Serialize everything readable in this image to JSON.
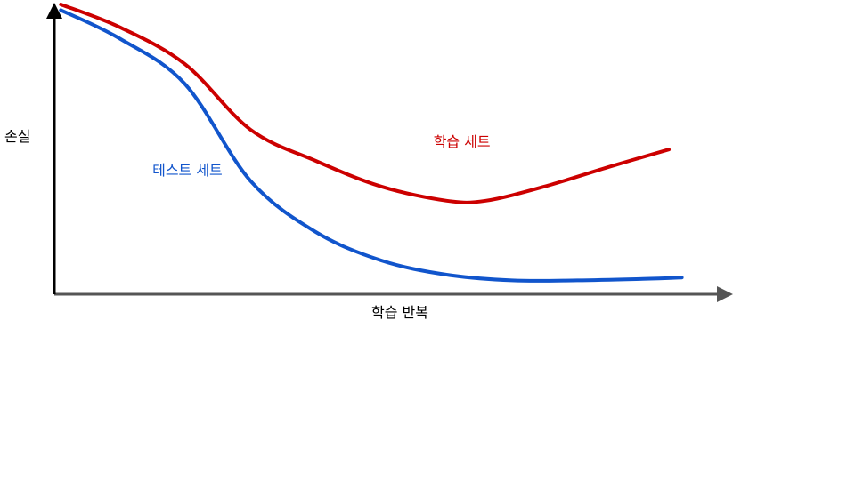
{
  "chart_data": {
    "type": "line",
    "title": "",
    "xlabel": "학습 반복",
    "ylabel": "손실",
    "xlim": [
      0,
      10
    ],
    "ylim": [
      0,
      10
    ],
    "grid": false,
    "legend": "none",
    "x_ticks": [],
    "y_ticks": [],
    "series": [
      {
        "name": "학습 세트",
        "color": "#cc0000",
        "label_at": [
          5.8,
          5.0
        ],
        "points": [
          [
            0.1,
            10.0
          ],
          [
            1.0,
            9.2
          ],
          [
            2.0,
            7.9
          ],
          [
            3.0,
            5.6
          ],
          [
            4.0,
            4.5
          ],
          [
            5.0,
            3.6
          ],
          [
            6.0,
            3.1
          ],
          [
            6.6,
            3.1
          ],
          [
            7.5,
            3.6
          ],
          [
            8.5,
            4.3
          ],
          [
            9.4,
            4.9
          ]
        ]
      },
      {
        "name": "테스트 세트",
        "color": "#1155cc",
        "label_at": [
          1.5,
          4.0
        ],
        "points": [
          [
            0.1,
            9.8
          ],
          [
            1.0,
            8.8
          ],
          [
            2.0,
            7.2
          ],
          [
            3.0,
            3.8
          ],
          [
            4.0,
            2.0
          ],
          [
            5.0,
            1.0
          ],
          [
            6.0,
            0.5
          ],
          [
            7.0,
            0.3
          ],
          [
            8.0,
            0.3
          ],
          [
            9.0,
            0.35
          ],
          [
            9.6,
            0.4
          ]
        ]
      }
    ]
  }
}
